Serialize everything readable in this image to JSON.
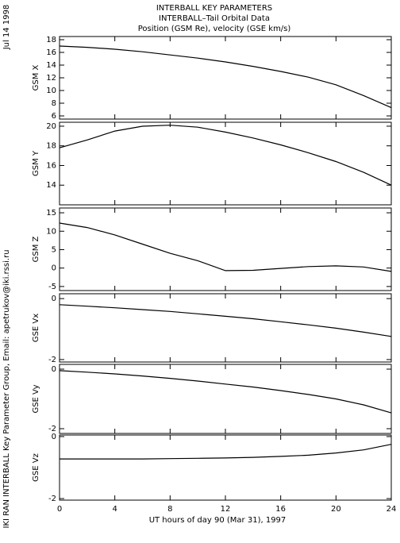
{
  "titles": [
    "INTERBALL KEY PARAMETERS",
    "INTERBALL–Tail Orbital Data",
    "Position (GSM Re), velocity (GSE km/s)"
  ],
  "side_date": "Jul 14 1998",
  "side_credit": "IKI RAN INTERBALL Key Parameter Group, Email: apetrukov@iki.rssi.ru",
  "chart_data": [
    {
      "type": "line",
      "ylabel": "GSM X",
      "color": "#000000",
      "x": [
        0,
        2,
        4,
        6,
        8,
        10,
        12,
        14,
        16,
        18,
        20,
        22,
        24
      ],
      "values": [
        17.0,
        16.8,
        16.5,
        16.1,
        15.6,
        15.1,
        14.5,
        13.8,
        13.0,
        12.1,
        10.9,
        9.2,
        7.3
      ],
      "xlim": [
        0,
        24
      ],
      "xticks": [
        0,
        4,
        8,
        12,
        16,
        20,
        24
      ],
      "ylim": [
        5.5,
        18.5
      ],
      "yticks": [
        6,
        8,
        10,
        12,
        14,
        16,
        18
      ]
    },
    {
      "type": "line",
      "ylabel": "GSM Y",
      "color": "#000000",
      "x": [
        0,
        2,
        4,
        6,
        8,
        10,
        12,
        14,
        16,
        18,
        20,
        22,
        24
      ],
      "values": [
        17.8,
        18.6,
        19.5,
        20.0,
        20.1,
        19.9,
        19.4,
        18.8,
        18.1,
        17.3,
        16.4,
        15.3,
        14.0
      ],
      "xlim": [
        0,
        24
      ],
      "xticks": [
        0,
        4,
        8,
        12,
        16,
        20,
        24
      ],
      "ylim": [
        12,
        20.4
      ],
      "yticks": [
        14,
        16,
        18,
        20
      ]
    },
    {
      "type": "line",
      "ylabel": "GSM Z",
      "color": "#000000",
      "x": [
        0,
        2,
        4,
        6,
        8,
        10,
        12,
        14,
        16,
        18,
        20,
        22,
        24
      ],
      "values": [
        12.2,
        11.0,
        9.0,
        6.5,
        4.0,
        2.0,
        -0.7,
        -0.6,
        -0.1,
        0.4,
        0.6,
        0.3,
        -0.9
      ],
      "xlim": [
        0,
        24
      ],
      "xticks": [
        0,
        4,
        8,
        12,
        16,
        20,
        24
      ],
      "ylim": [
        -6.1,
        16.3
      ],
      "yticks": [
        -5,
        0,
        5,
        10,
        15
      ]
    },
    {
      "type": "line",
      "ylabel": "GSE Vx",
      "color": "#000000",
      "x": [
        0,
        2,
        4,
        6,
        8,
        10,
        12,
        14,
        16,
        18,
        20,
        22,
        24
      ],
      "values": [
        -0.2,
        -0.25,
        -0.3,
        -0.36,
        -0.42,
        -0.5,
        -0.58,
        -0.66,
        -0.76,
        -0.86,
        -0.97,
        -1.1,
        -1.24
      ],
      "xlim": [
        0,
        24
      ],
      "xticks": [
        0,
        4,
        8,
        12,
        16,
        20,
        24
      ],
      "ylim": [
        -2.08,
        0.16
      ],
      "yticks": [
        -2,
        0
      ]
    },
    {
      "type": "line",
      "ylabel": "GSE Vy",
      "color": "#000000",
      "x": [
        0,
        2,
        4,
        6,
        8,
        10,
        12,
        14,
        16,
        18,
        20,
        22,
        24
      ],
      "values": [
        -0.05,
        -0.1,
        -0.16,
        -0.23,
        -0.31,
        -0.4,
        -0.5,
        -0.6,
        -0.72,
        -0.85,
        -1.0,
        -1.2,
        -1.47
      ],
      "xlim": [
        0,
        24
      ],
      "xticks": [
        0,
        4,
        8,
        12,
        16,
        20,
        24
      ],
      "ylim": [
        -2.16,
        0.16
      ],
      "yticks": [
        -2,
        0
      ]
    },
    {
      "type": "line",
      "ylabel": "GSE Vz",
      "color": "#000000",
      "x": [
        0,
        2,
        4,
        6,
        8,
        10,
        12,
        14,
        16,
        18,
        20,
        22,
        24
      ],
      "values": [
        -0.72,
        -0.72,
        -0.72,
        -0.72,
        -0.71,
        -0.7,
        -0.69,
        -0.67,
        -0.64,
        -0.6,
        -0.53,
        -0.43,
        -0.25
      ],
      "xlim": [
        0,
        24
      ],
      "xticks": [
        0,
        4,
        8,
        12,
        16,
        20,
        24
      ],
      "ylim": [
        -2.05,
        0.05
      ],
      "yticks": [
        -2,
        0
      ],
      "xlabel": "UT hours of day  90 (Mar 31), 1997"
    }
  ]
}
